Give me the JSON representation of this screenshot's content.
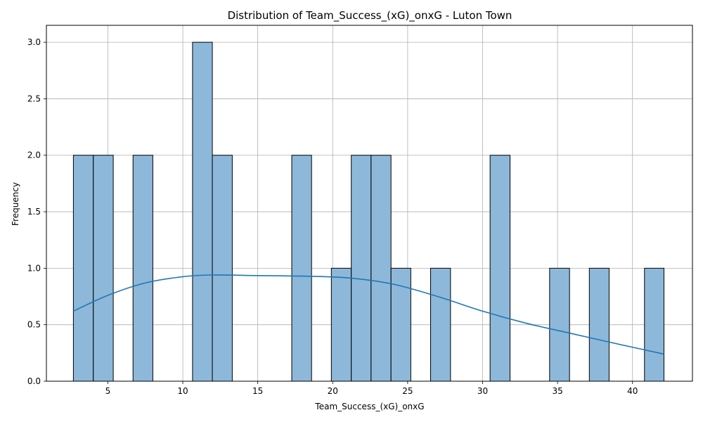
{
  "chart_data": {
    "type": "bar",
    "title": "Distribution of Team_Success_(xG)_onxG - Luton Town",
    "xlabel": "Team_Success_(xG)_onxG",
    "ylabel": "Frequency",
    "xlim": [
      0.9,
      44.0
    ],
    "ylim": [
      0,
      3.15
    ],
    "xticks": [
      5,
      10,
      15,
      20,
      25,
      30,
      35,
      40
    ],
    "xtick_labels": [
      "5",
      "10",
      "15",
      "20",
      "25",
      "30",
      "35",
      "40"
    ],
    "yticks": [
      0.0,
      0.5,
      1.0,
      1.5,
      2.0,
      2.5,
      3.0
    ],
    "ytick_labels": [
      "0.0",
      "0.5",
      "1.0",
      "1.5",
      "2.0",
      "2.5",
      "3.0"
    ],
    "grid": true,
    "bins": [
      {
        "x0": 2.7,
        "x1": 4.03,
        "count": 2
      },
      {
        "x0": 4.03,
        "x1": 5.36,
        "count": 2
      },
      {
        "x0": 6.68,
        "x1": 8.0,
        "count": 2
      },
      {
        "x0": 10.65,
        "x1": 11.97,
        "count": 3
      },
      {
        "x0": 11.97,
        "x1": 13.3,
        "count": 2
      },
      {
        "x0": 17.27,
        "x1": 18.59,
        "count": 2
      },
      {
        "x0": 19.91,
        "x1": 21.24,
        "count": 1
      },
      {
        "x0": 21.24,
        "x1": 22.56,
        "count": 2
      },
      {
        "x0": 22.56,
        "x1": 23.89,
        "count": 2
      },
      {
        "x0": 23.89,
        "x1": 25.21,
        "count": 1
      },
      {
        "x0": 26.53,
        "x1": 27.86,
        "count": 1
      },
      {
        "x0": 30.5,
        "x1": 31.83,
        "count": 2
      },
      {
        "x0": 34.47,
        "x1": 35.8,
        "count": 1
      },
      {
        "x0": 37.12,
        "x1": 38.44,
        "count": 1
      },
      {
        "x0": 40.8,
        "x1": 42.1,
        "count": 1
      }
    ],
    "kde": {
      "x": [
        2.7,
        5.0,
        7.5,
        10.0,
        12.0,
        15.0,
        18.0,
        21.0,
        24.0,
        27.0,
        30.0,
        33.0,
        36.0,
        39.0,
        42.1
      ],
      "y": [
        0.62,
        0.76,
        0.87,
        0.925,
        0.94,
        0.935,
        0.93,
        0.915,
        0.86,
        0.75,
        0.62,
        0.51,
        0.42,
        0.33,
        0.24
      ]
    },
    "colors": {
      "bar_fill": "#8db8da",
      "bar_edge": "#000000",
      "kde_line": "#1f77b4",
      "grid": "#b0b0b0"
    }
  }
}
